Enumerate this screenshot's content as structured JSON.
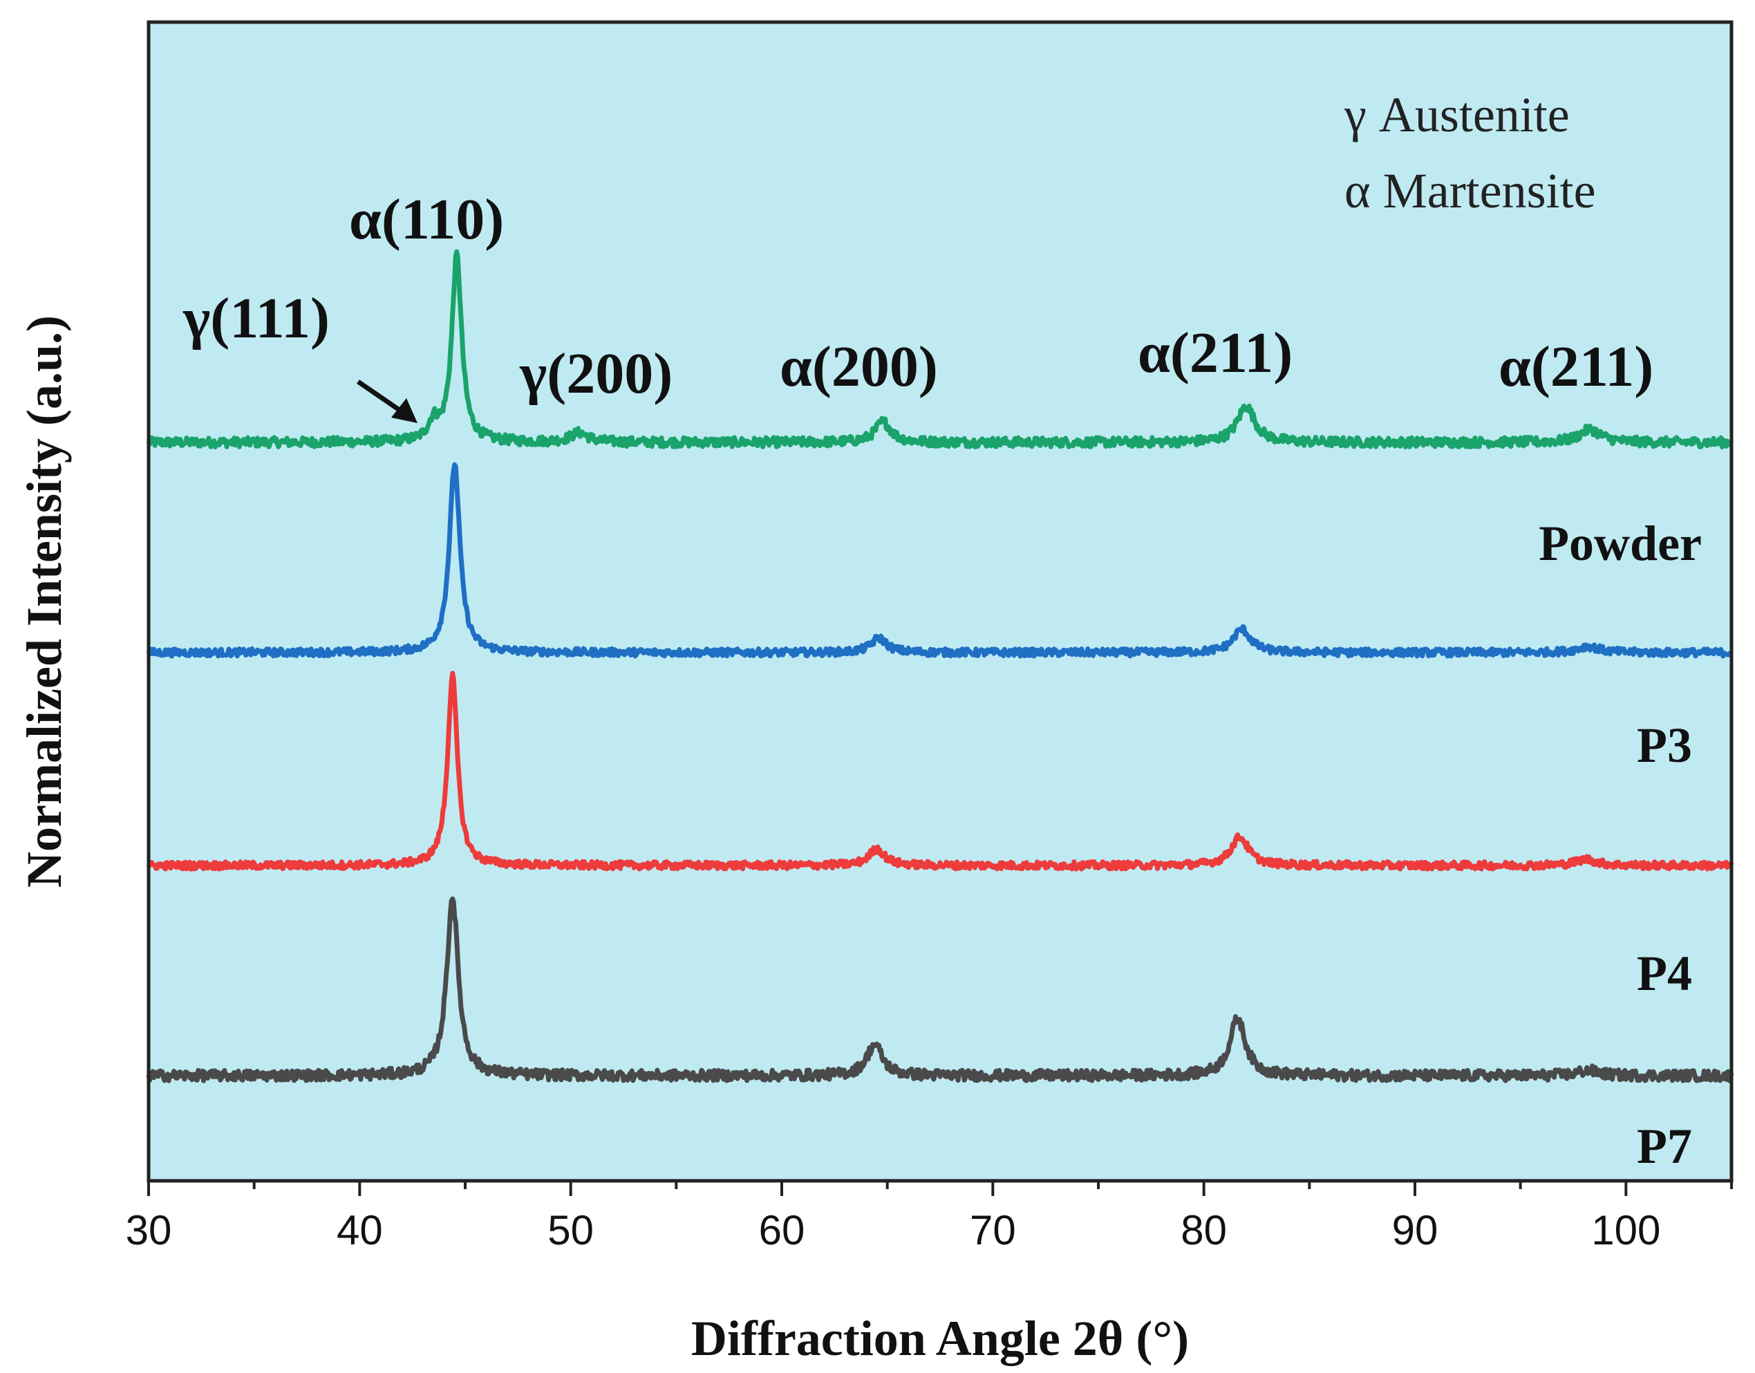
{
  "chart_data": {
    "type": "line",
    "title": "",
    "xlabel": "Diffraction Angle 2θ (°)",
    "ylabel": "Normalized Intensity (a.u.)",
    "xlim": [
      30,
      105
    ],
    "xticks": [
      30,
      40,
      50,
      60,
      70,
      80,
      90,
      100
    ],
    "colors": {
      "plot_bg": "#bfeaf2",
      "axis": "#222222"
    },
    "series": [
      {
        "name": "Powder",
        "color": "#1aa36a",
        "baseline": 0,
        "noise": 0.09,
        "peaks": [
          {
            "x": 43.5,
            "height": 0.35,
            "width": 0.3
          },
          {
            "x": 44.6,
            "height": 3.6,
            "width": 0.28
          },
          {
            "x": 50.4,
            "height": 0.18,
            "width": 0.5
          },
          {
            "x": 64.8,
            "height": 0.4,
            "width": 0.45
          },
          {
            "x": 82.0,
            "height": 0.7,
            "width": 0.5
          },
          {
            "x": 98.3,
            "height": 0.25,
            "width": 0.6
          }
        ]
      },
      {
        "name": "P3",
        "color": "#1f6fc4",
        "baseline": 0,
        "noise": 0.07,
        "peaks": [
          {
            "x": 44.5,
            "height": 3.65,
            "width": 0.3
          },
          {
            "x": 64.6,
            "height": 0.28,
            "width": 0.45
          },
          {
            "x": 81.8,
            "height": 0.45,
            "width": 0.5
          },
          {
            "x": 98.2,
            "height": 0.12,
            "width": 0.6
          }
        ]
      },
      {
        "name": "P4",
        "color": "#ee3b3b",
        "baseline": 0,
        "noise": 0.07,
        "peaks": [
          {
            "x": 44.4,
            "height": 3.65,
            "width": 0.28
          },
          {
            "x": 64.5,
            "height": 0.32,
            "width": 0.45
          },
          {
            "x": 81.7,
            "height": 0.55,
            "width": 0.5
          },
          {
            "x": 98.1,
            "height": 0.12,
            "width": 0.6
          }
        ]
      },
      {
        "name": "P7",
        "color": "#4a4a4a",
        "baseline": 0,
        "noise": 0.1,
        "peaks": [
          {
            "x": 44.4,
            "height": 3.45,
            "width": 0.33
          },
          {
            "x": 64.4,
            "height": 0.6,
            "width": 0.45
          },
          {
            "x": 81.6,
            "height": 1.1,
            "width": 0.45
          },
          {
            "x": 98.2,
            "height": 0.1,
            "width": 0.6
          }
        ]
      }
    ],
    "peak_labels": [
      {
        "text": "γ(111)"
      },
      {
        "text": "α(110)"
      },
      {
        "text": "γ(200)"
      },
      {
        "text": "α(200)"
      },
      {
        "text": "α(211)"
      },
      {
        "text": "α(211)"
      }
    ],
    "sample_labels": [
      "Powder",
      "P3",
      "P4",
      "P7"
    ],
    "legend": [
      "γ Austenite",
      "α Martensite"
    ]
  }
}
